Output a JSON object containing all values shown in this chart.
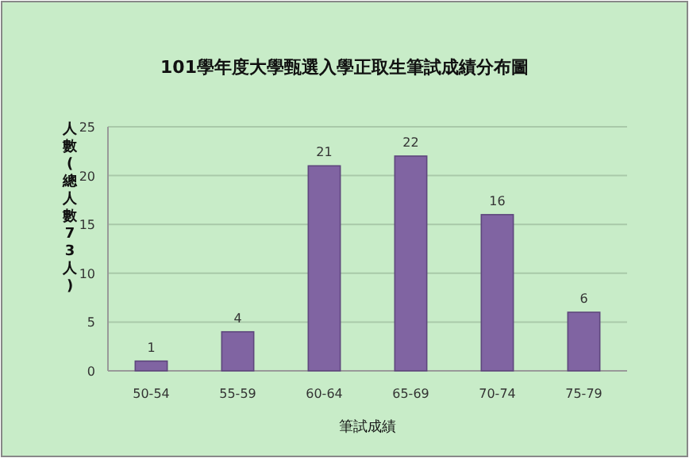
{
  "chart_data": {
    "type": "bar",
    "title": "101學年度大學甄選入學正取生筆試成績分布圖",
    "xlabel": "筆試成績",
    "ylabel": "人數(總人數73人)",
    "categories": [
      "50-54",
      "55-59",
      "60-64",
      "65-69",
      "70-74",
      "75-79"
    ],
    "values": [
      1,
      4,
      21,
      22,
      16,
      6
    ],
    "color": "#8064a2",
    "ylim": [
      0,
      25
    ],
    "yticks": [
      0,
      5,
      10,
      15,
      20,
      25
    ],
    "grid": "y",
    "data_labels": true
  }
}
